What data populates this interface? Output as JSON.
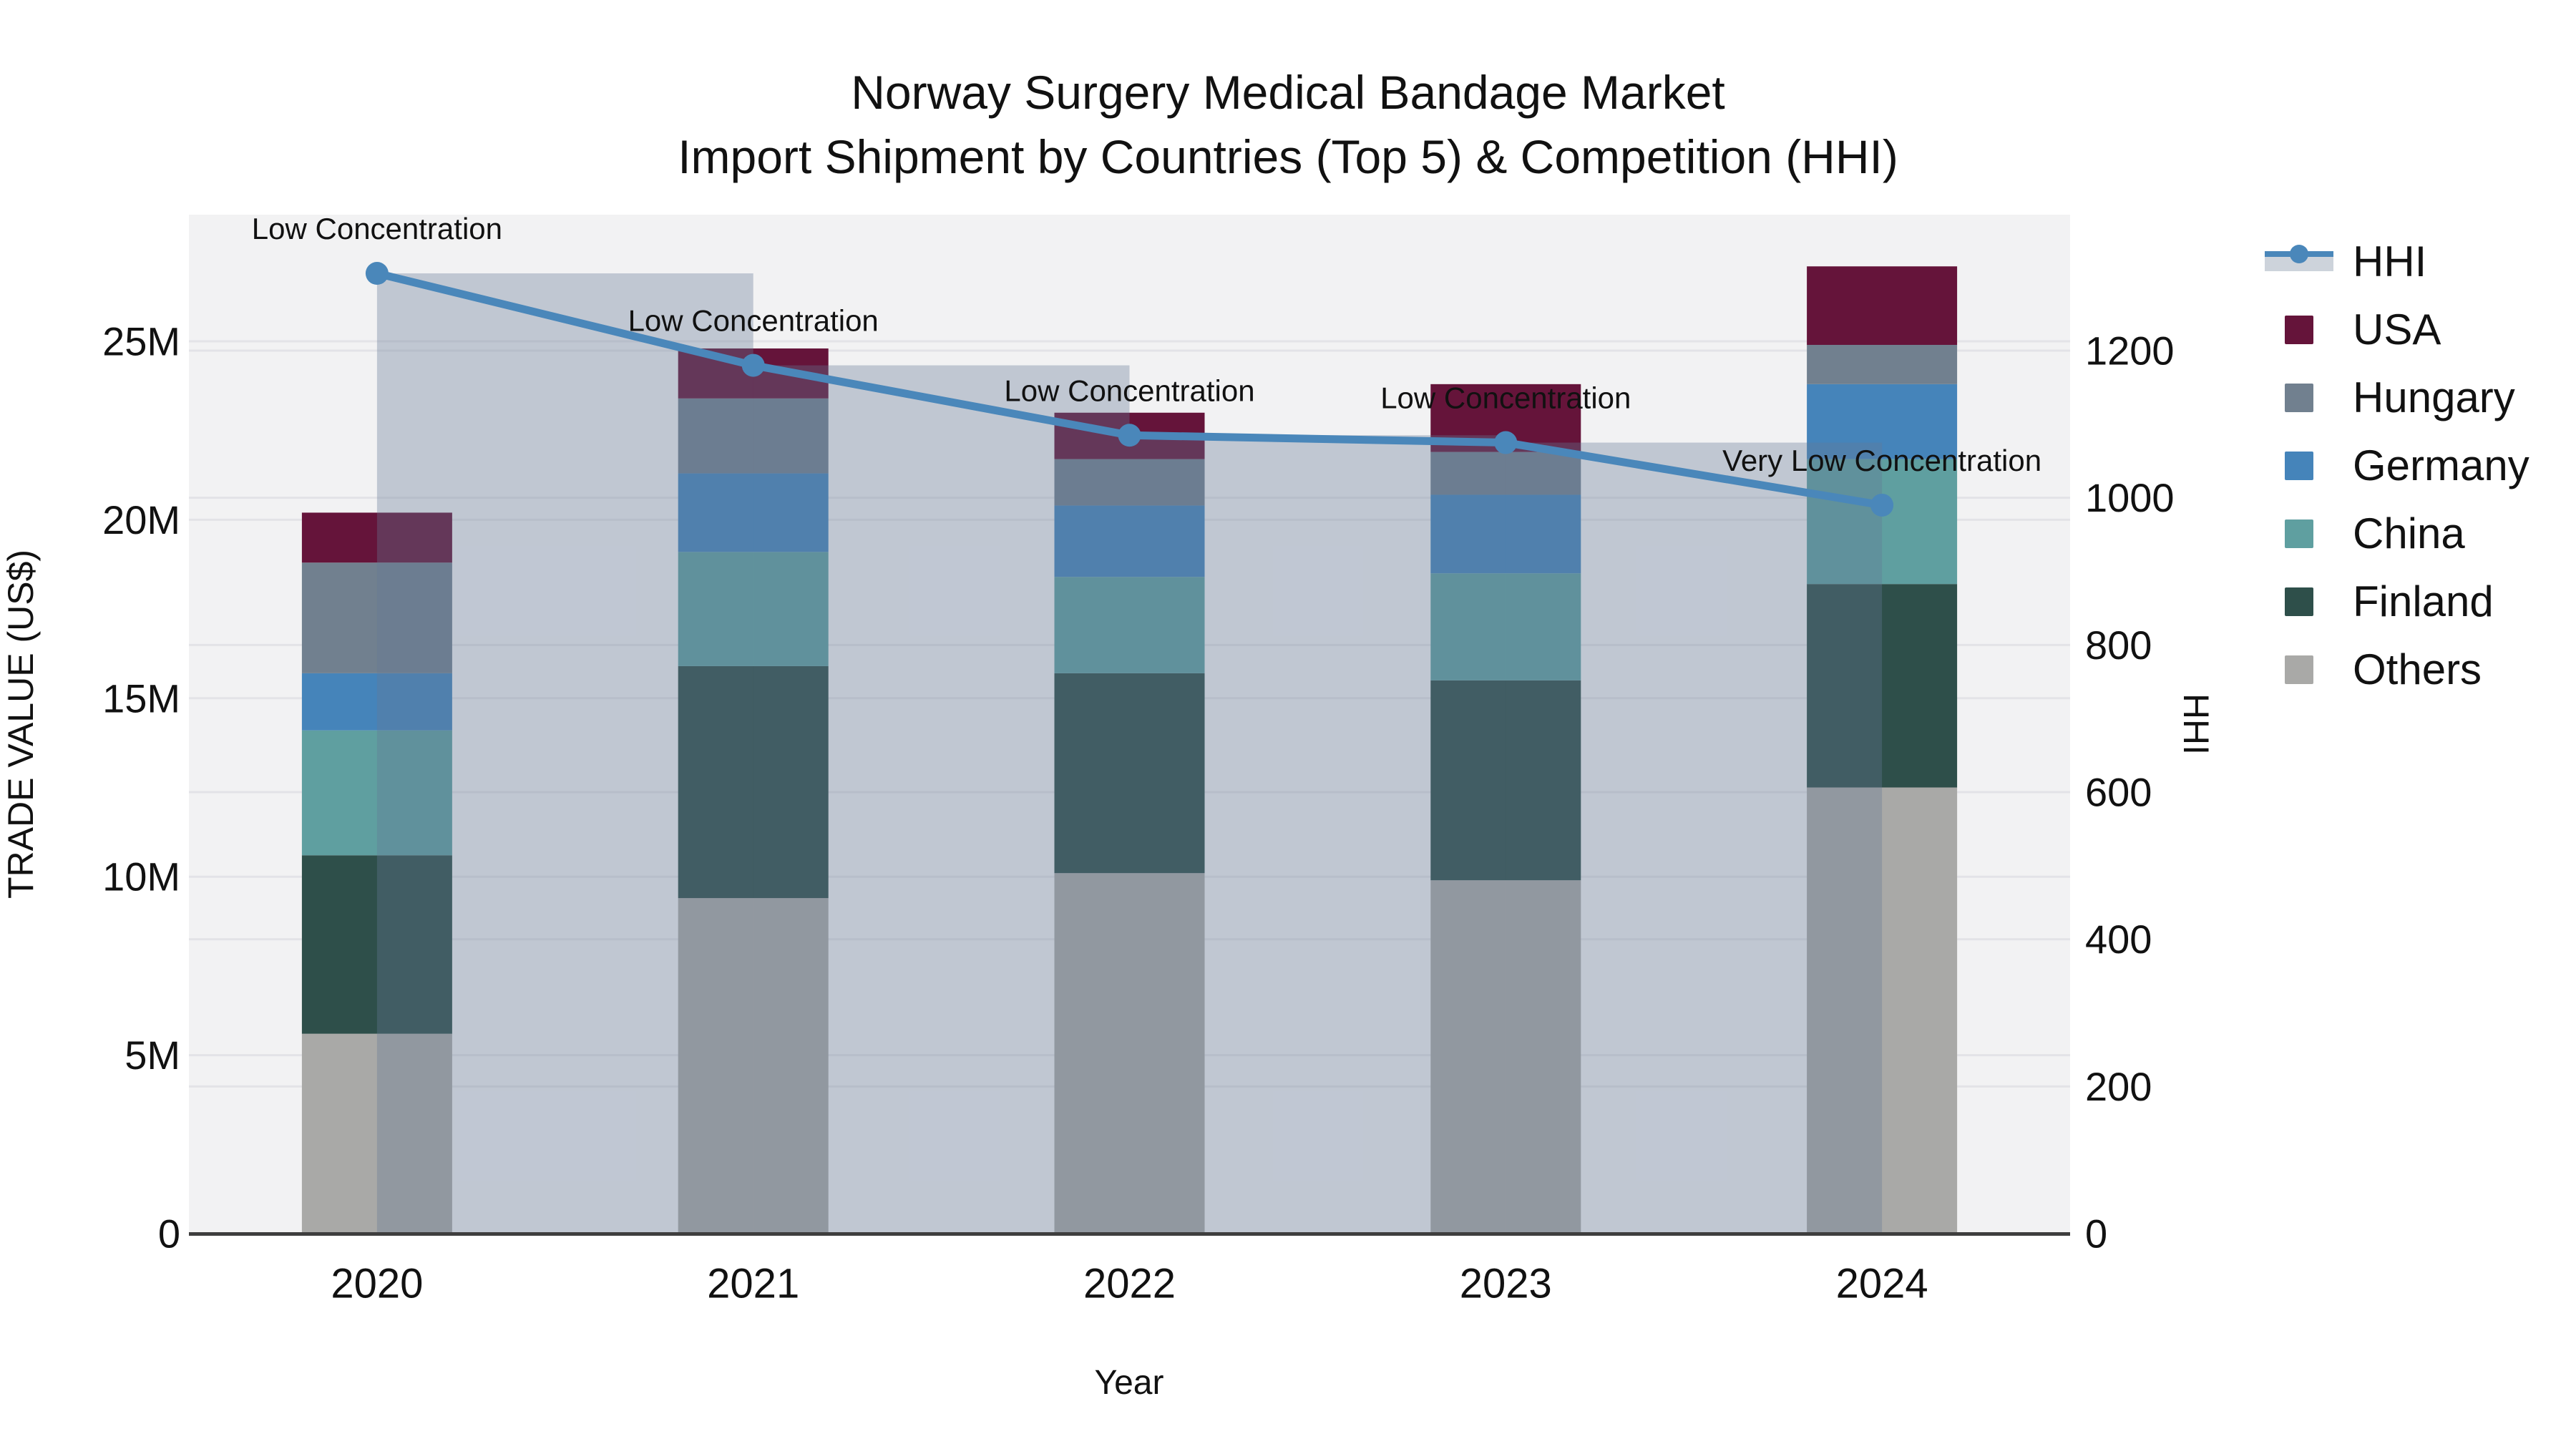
{
  "title": {
    "line1": "Norway Surgery Medical Bandage Market",
    "line2": "Import Shipment by Countries (Top 5) & Competition (HHI)"
  },
  "axes": {
    "left": {
      "title": "TRADE VALUE (US$)",
      "tick_labels": [
        "0",
        "5M",
        "10M",
        "15M",
        "20M",
        "25M"
      ],
      "tick_values_M": [
        0,
        5,
        10,
        15,
        20,
        25
      ]
    },
    "right": {
      "title": "HHI",
      "tick_labels": [
        "0",
        "200",
        "400",
        "600",
        "800",
        "1000",
        "1200"
      ],
      "tick_values": [
        0,
        200,
        400,
        600,
        800,
        1000,
        1200
      ]
    },
    "bottom": {
      "title": "Year"
    }
  },
  "legend": {
    "items": [
      {
        "label": "HHI",
        "type": "line",
        "color": "#4a87ba",
        "band_color": "#cdd3db"
      },
      {
        "label": "USA",
        "type": "box",
        "color": "#69173c"
      },
      {
        "label": "Hungary",
        "type": "box",
        "color": "#74828f"
      },
      {
        "label": "Germany",
        "type": "box",
        "color": "#4584ba"
      },
      {
        "label": "China",
        "type": "box",
        "color": "#62a1a2"
      },
      {
        "label": "Finland",
        "type": "box",
        "color": "#2e4f4a"
      },
      {
        "label": "Others",
        "type": "box",
        "color": "#abtabb"
      }
    ]
  },
  "chart_data": {
    "type": "combo-stacked-bar-line",
    "categories": [
      "2020",
      "2021",
      "2022",
      "2023",
      "2024"
    ],
    "bar_value_unit": "Million US$ (left axis)",
    "series": [
      {
        "name": "Others",
        "color": "#a9a9a7",
        "values": [
          5.6,
          9.4,
          10.1,
          9.9,
          12.5
        ]
      },
      {
        "name": "Finland",
        "color": "#2e4f4a",
        "values": [
          5.0,
          6.5,
          5.6,
          5.6,
          5.7
        ]
      },
      {
        "name": "China",
        "color": "#5f9fa0",
        "values": [
          3.5,
          3.2,
          2.7,
          3.0,
          3.5
        ]
      },
      {
        "name": "Germany",
        "color": "#4584ba",
        "values": [
          1.6,
          2.2,
          2.0,
          2.2,
          2.1
        ]
      },
      {
        "name": "Hungary",
        "color": "#71808f",
        "values": [
          3.1,
          2.1,
          1.3,
          1.2,
          1.1
        ]
      },
      {
        "name": "USA",
        "color": "#65143a",
        "values": [
          1.4,
          1.4,
          1.3,
          1.9,
          2.2
        ]
      }
    ],
    "bar_totals_M": [
      20.2,
      24.8,
      23.0,
      23.8,
      27.1
    ],
    "line": {
      "name": "HHI",
      "axis": "right",
      "color": "#4a87ba",
      "values": [
        1305,
        1180,
        1085,
        1075,
        990
      ]
    },
    "hhi_step_bars": {
      "enabled": true,
      "fill": "rgba(100,120,150,0.35)",
      "note": "translucent wide bars from each year marker to the next, top at that year's HHI"
    },
    "annotations": [
      "Low Concentration",
      "Low Concentration",
      "Low Concentration",
      "Low Concentration",
      "Very Low Concentration"
    ],
    "left_axis_range_M": [
      0,
      28.5
    ],
    "right_axis_range": [
      0,
      1385
    ],
    "grid": true,
    "plot_bg": "#f2f2f3",
    "grid_color": "#e3e3e7",
    "axis_line_color": "#3e3e3e",
    "legend_position": "right",
    "title_lines": [
      "Norway Surgery Medical Bandage Market",
      "Import Shipment by Countries (Top 5) & Competition (HHI)"
    ]
  }
}
